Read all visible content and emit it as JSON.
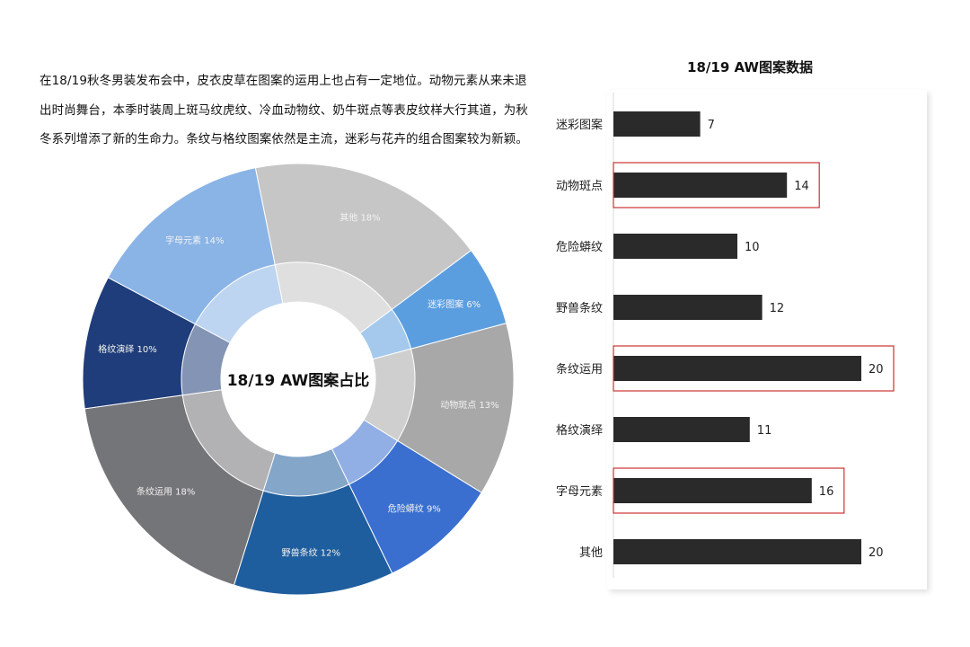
{
  "intro_text": "在18/19秋冬男装发布会中，皮衣皮草在图案的运用上也占有一定地位。动物元素从来未退出时尚舞台，本季时装周上斑马纹虎纹、冷血动物纹、奶牛斑点等表皮纹样大行其道，为秋冬系列增添了新的生命力。条纹与格纹图案依然是主流，迷彩与花卉的组合图案较为新颖。",
  "chart_data": [
    {
      "type": "pie",
      "style": "donut",
      "title": "18/19 AW图案占比",
      "slices": [
        {
          "label": "其他",
          "value": 18,
          "display": "其他 18%",
          "color": "#c6c6c6"
        },
        {
          "label": "迷彩图案",
          "value": 6,
          "display": "迷彩图案 6%",
          "color": "#5b9ee0"
        },
        {
          "label": "动物斑点",
          "value": 13,
          "display": "动物斑点 13%",
          "color": "#a8a8a8"
        },
        {
          "label": "危险蟒纹",
          "value": 9,
          "display": "危险蟒纹 9%",
          "color": "#3a6fd0"
        },
        {
          "label": "野兽条纹",
          "value": 12,
          "display": "野兽条纹 12%",
          "color": "#1f5e9e"
        },
        {
          "label": "条纹运用",
          "value": 18,
          "display": "条纹运用 18%",
          "color": "#747578"
        },
        {
          "label": "格纹演绎",
          "value": 10,
          "display": "格纹演绎 10%",
          "color": "#1f3d7a"
        },
        {
          "label": "字母元素",
          "value": 14,
          "display": "字母元素 14%",
          "color": "#8ab4e6"
        }
      ]
    },
    {
      "type": "bar",
      "orientation": "horizontal",
      "title": "18/19 AW图案数据",
      "categories": [
        "迷彩图案",
        "动物斑点",
        "危险蟒纹",
        "野兽条纹",
        "条纹运用",
        "格纹演绎",
        "字母元素",
        "其他"
      ],
      "values": [
        7,
        14,
        10,
        12,
        20,
        11,
        16,
        20
      ],
      "highlighted": [
        "动物斑点",
        "条纹运用",
        "字母元素"
      ],
      "bar_color": "#2a2a2a",
      "highlight_color": "#cc3333",
      "xlim": [
        0,
        20
      ],
      "grid": false
    }
  ]
}
